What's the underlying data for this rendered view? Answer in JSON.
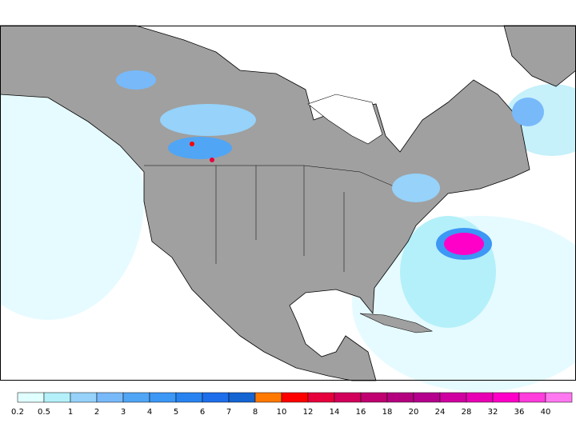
{
  "legend": {
    "labels": [
      0.2,
      0.5,
      1,
      2,
      3,
      4,
      5,
      6,
      7,
      8,
      10,
      12,
      14,
      16,
      18,
      20,
      24,
      28,
      32,
      36,
      40
    ],
    "colors": [
      "#e0ffff",
      "#b4f0fa",
      "#96d2fa",
      "#78b9fa",
      "#50a5f5",
      "#3c97f5",
      "#2883f0",
      "#1e6eeb",
      "#1464d2",
      "#ff7800",
      "#ff0000",
      "#e6003c",
      "#d2005a",
      "#c00070",
      "#b4007f",
      "#b4008c",
      "#d000a0",
      "#e800b4",
      "#ff00c8",
      "#ff3cdc",
      "#ff78f0"
    ]
  }
}
